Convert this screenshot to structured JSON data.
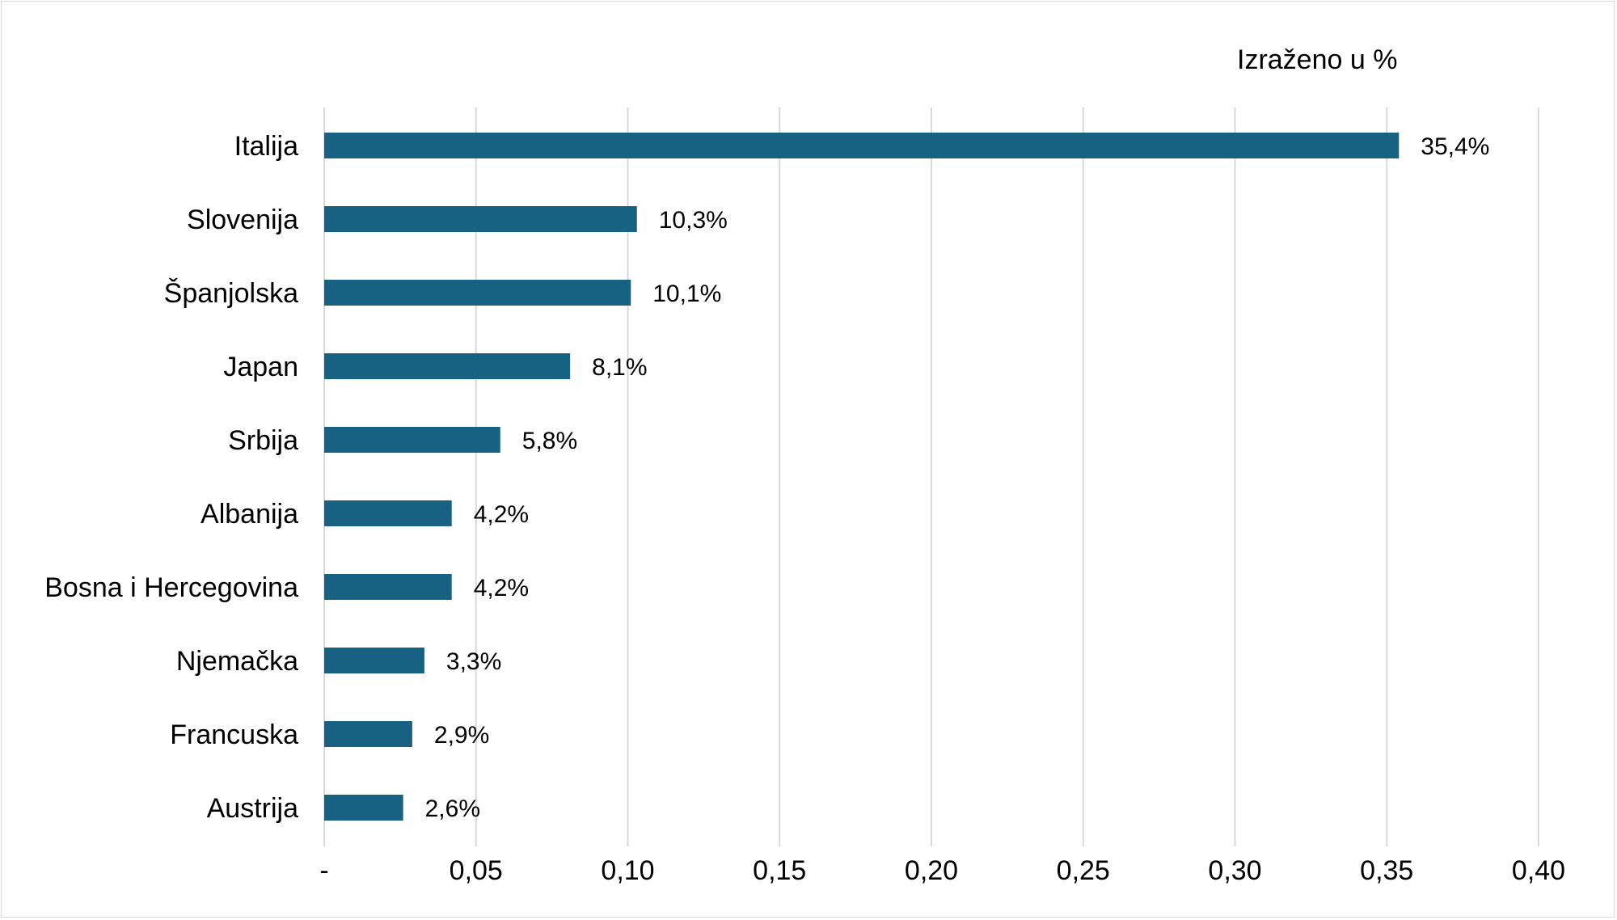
{
  "chart_data": {
    "type": "bar",
    "orientation": "horizontal",
    "unit_note": "Izraženo u %",
    "categories": [
      "Italija",
      "Slovenija",
      "Španjolska",
      "Japan",
      "Srbija",
      "Albanija",
      "Bosna i Hercegovina",
      "Njemačka",
      "Francuska",
      "Austrija"
    ],
    "values": [
      0.354,
      0.103,
      0.101,
      0.081,
      0.058,
      0.042,
      0.042,
      0.033,
      0.029,
      0.026
    ],
    "data_labels": [
      "35,4%",
      "10,3%",
      "10,1%",
      "8,1%",
      "5,8%",
      "4,2%",
      "4,2%",
      "3,3%",
      "2,9%",
      "2,6%"
    ],
    "xlim": [
      0,
      0.4
    ],
    "x_ticks": [
      0,
      0.05,
      0.1,
      0.15,
      0.2,
      0.25,
      0.3,
      0.35,
      0.4
    ],
    "x_tick_labels": [
      "-",
      "0,05",
      "0,10",
      "0,15",
      "0,20",
      "0,25",
      "0,30",
      "0,35",
      "0,40"
    ],
    "grid": "vertical",
    "legend": "none",
    "bar_color": "#176183",
    "grid_color": "#d9d9d9"
  }
}
